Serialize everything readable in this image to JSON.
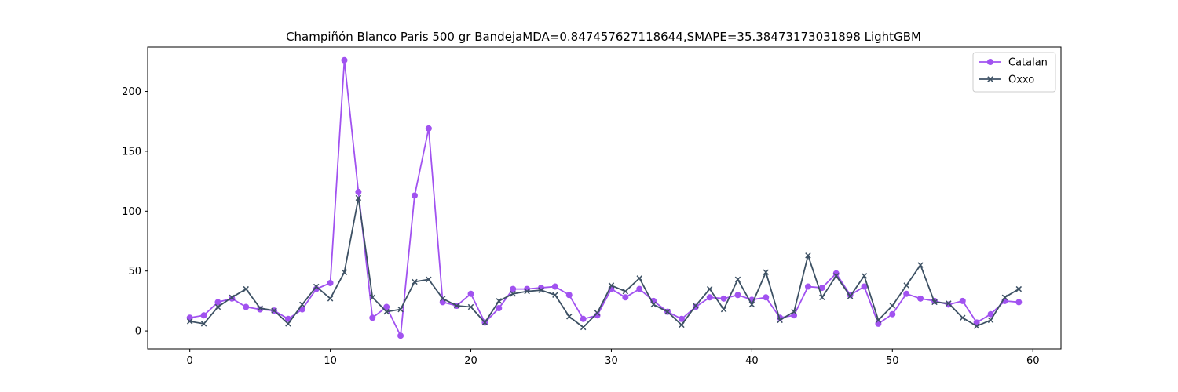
{
  "chart_data": {
    "type": "line",
    "title": "Champiñón Blanco Paris 500 gr BandejaMDA=0.847457627118644,SMAPE=35.38473173031898 LightGBM",
    "xlabel": "",
    "ylabel": "",
    "xlim": [
      -3,
      62
    ],
    "ylim": [
      -15,
      237
    ],
    "xticks": [
      0,
      10,
      20,
      30,
      40,
      50,
      60
    ],
    "yticks": [
      0,
      50,
      100,
      150,
      200
    ],
    "grid": false,
    "legend_position": "top-right",
    "series": [
      {
        "name": "Catalan",
        "color": "#a152f0",
        "marker": "circle",
        "x": [
          0,
          1,
          2,
          3,
          4,
          5,
          6,
          7,
          8,
          9,
          10,
          11,
          12,
          13,
          14,
          15,
          16,
          17,
          18,
          19,
          20,
          21,
          22,
          23,
          24,
          25,
          26,
          27,
          28,
          29,
          30,
          31,
          32,
          33,
          34,
          35,
          36,
          37,
          38,
          39,
          40,
          41,
          42,
          43,
          44,
          45,
          46,
          47,
          48,
          49,
          50,
          51,
          52,
          53,
          54,
          55,
          56,
          57,
          58,
          59
        ],
        "values": [
          11,
          13,
          24,
          27,
          20,
          18,
          17,
          10,
          18,
          35,
          40,
          226,
          116,
          11,
          20,
          -4,
          113,
          169,
          24,
          21,
          31,
          7,
          19,
          35,
          35,
          36,
          37,
          30,
          10,
          13,
          35,
          28,
          35,
          25,
          16,
          10,
          20,
          28,
          27,
          30,
          26,
          28,
          11,
          13,
          37,
          36,
          48,
          30,
          37,
          6,
          14,
          31,
          27,
          25,
          22,
          25,
          7,
          14,
          25,
          24
        ]
      },
      {
        "name": "Oxxo",
        "color": "#3d5164",
        "marker": "x",
        "x": [
          0,
          1,
          2,
          3,
          4,
          5,
          6,
          7,
          8,
          9,
          10,
          11,
          12,
          13,
          14,
          15,
          16,
          17,
          18,
          19,
          20,
          21,
          22,
          23,
          24,
          25,
          26,
          27,
          28,
          29,
          30,
          31,
          32,
          33,
          34,
          35,
          36,
          37,
          38,
          39,
          40,
          41,
          42,
          43,
          44,
          45,
          46,
          47,
          48,
          49,
          50,
          51,
          52,
          53,
          54,
          55,
          56,
          57,
          58,
          59
        ],
        "values": [
          8,
          6,
          20,
          28,
          35,
          19,
          17,
          6,
          22,
          37,
          27,
          49,
          111,
          28,
          16,
          18,
          41,
          43,
          27,
          21,
          20,
          7,
          25,
          31,
          33,
          34,
          30,
          12,
          3,
          15,
          38,
          33,
          44,
          22,
          16,
          5,
          21,
          35,
          18,
          43,
          22,
          49,
          9,
          16,
          63,
          28,
          46,
          29,
          46,
          9,
          21,
          38,
          55,
          24,
          23,
          11,
          4,
          9,
          28,
          35
        ]
      }
    ]
  }
}
